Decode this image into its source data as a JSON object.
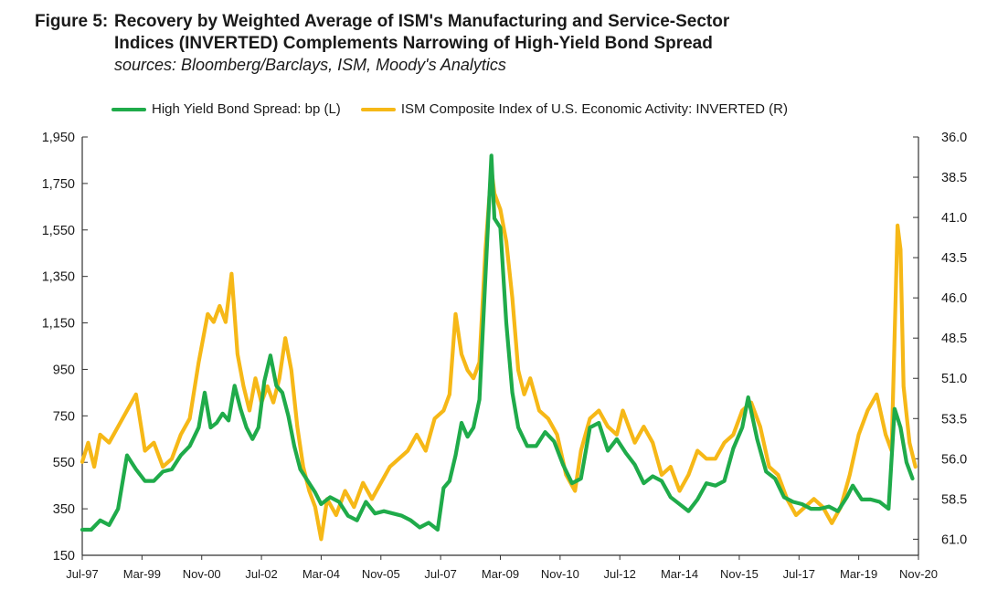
{
  "figure": {
    "label": "Figure 5:",
    "title_line1": "Recovery by Weighted Average of ISM's Manufacturing and Service-Sector",
    "title_line2": "Indices (INVERTED) Complements Narrowing of High-Yield Bond Spread",
    "sources": "sources: Bloomberg/Barclays, ISM, Moody's Analytics"
  },
  "colors": {
    "green": "#1fab4a",
    "gold": "#f6b817",
    "axis": "#333333"
  },
  "chart_data": {
    "type": "line",
    "title": "Recovery by Weighted Average of ISM's Manufacturing and Service-Sector Indices (INVERTED) Complements Narrowing of High-Yield Bond Spread",
    "left_axis": {
      "label": "High Yield Bond Spread: bp (L)",
      "min": 150,
      "max": 1950,
      "ticks": [
        "1,950",
        "1,750",
        "1,550",
        "1,350",
        "1,150",
        "950",
        "750",
        "550",
        "350",
        "150"
      ]
    },
    "right_axis": {
      "label": "ISM Composite Index of U.S. Economic Activity: INVERTED (R)",
      "min": 36.0,
      "max": 62.0,
      "inverted": true,
      "ticks": [
        "36.0",
        "38.5",
        "41.0",
        "43.5",
        "46.0",
        "48.5",
        "51.0",
        "53.5",
        "56.0",
        "58.5",
        "61.0"
      ]
    },
    "x_axis": {
      "start": "Jul-97",
      "end": "Nov-20",
      "tick_labels": [
        "Jul-97",
        "Mar-99",
        "Nov-00",
        "Jul-02",
        "Mar-04",
        "Nov-05",
        "Jul-07",
        "Mar-09",
        "Nov-10",
        "Jul-12",
        "Mar-14",
        "Nov-15",
        "Jul-17",
        "Mar-19",
        "Nov-20"
      ]
    },
    "legend_position": "top",
    "grid": false,
    "series": [
      {
        "name": "High Yield Bond Spread: bp (L)",
        "axis": "left",
        "color": "#1fab4a",
        "points": [
          [
            "Jul-97",
            260
          ],
          [
            "Oct-97",
            260
          ],
          [
            "Jan-98",
            300
          ],
          [
            "Apr-98",
            280
          ],
          [
            "Jul-98",
            350
          ],
          [
            "Oct-98",
            580
          ],
          [
            "Jan-99",
            520
          ],
          [
            "Apr-99",
            470
          ],
          [
            "Jul-99",
            470
          ],
          [
            "Oct-99",
            510
          ],
          [
            "Jan-00",
            520
          ],
          [
            "Apr-00",
            580
          ],
          [
            "Jul-00",
            620
          ],
          [
            "Oct-00",
            700
          ],
          [
            "Dec-00",
            850
          ],
          [
            "Feb-01",
            700
          ],
          [
            "Apr-01",
            720
          ],
          [
            "Jun-01",
            760
          ],
          [
            "Aug-01",
            730
          ],
          [
            "Oct-01",
            880
          ],
          [
            "Dec-01",
            780
          ],
          [
            "Feb-02",
            700
          ],
          [
            "Apr-02",
            650
          ],
          [
            "Jun-02",
            700
          ],
          [
            "Aug-02",
            900
          ],
          [
            "Oct-02",
            1010
          ],
          [
            "Dec-02",
            880
          ],
          [
            "Feb-03",
            850
          ],
          [
            "Apr-03",
            750
          ],
          [
            "Jun-03",
            620
          ],
          [
            "Aug-03",
            520
          ],
          [
            "Oct-03",
            480
          ],
          [
            "Jan-04",
            420
          ],
          [
            "Mar-04",
            370
          ],
          [
            "Jun-04",
            400
          ],
          [
            "Sep-04",
            380
          ],
          [
            "Dec-04",
            320
          ],
          [
            "Mar-05",
            300
          ],
          [
            "Jun-05",
            380
          ],
          [
            "Sep-05",
            330
          ],
          [
            "Dec-05",
            340
          ],
          [
            "Mar-06",
            330
          ],
          [
            "Jun-06",
            320
          ],
          [
            "Sep-06",
            300
          ],
          [
            "Dec-06",
            270
          ],
          [
            "Mar-07",
            290
          ],
          [
            "Jun-07",
            260
          ],
          [
            "Aug-07",
            440
          ],
          [
            "Oct-07",
            470
          ],
          [
            "Dec-07",
            580
          ],
          [
            "Feb-08",
            720
          ],
          [
            "Apr-08",
            660
          ],
          [
            "Jun-08",
            700
          ],
          [
            "Aug-08",
            820
          ],
          [
            "Oct-08",
            1350
          ],
          [
            "Dec-08",
            1870
          ],
          [
            "Jan-09",
            1600
          ],
          [
            "Mar-09",
            1560
          ],
          [
            "May-09",
            1150
          ],
          [
            "Jul-09",
            850
          ],
          [
            "Sep-09",
            700
          ],
          [
            "Dec-09",
            620
          ],
          [
            "Mar-10",
            620
          ],
          [
            "Jun-10",
            680
          ],
          [
            "Sep-10",
            640
          ],
          [
            "Dec-10",
            540
          ],
          [
            "Mar-11",
            460
          ],
          [
            "Jun-11",
            480
          ],
          [
            "Sep-11",
            700
          ],
          [
            "Dec-11",
            720
          ],
          [
            "Mar-12",
            600
          ],
          [
            "Jun-12",
            650
          ],
          [
            "Sep-12",
            590
          ],
          [
            "Dec-12",
            540
          ],
          [
            "Mar-13",
            460
          ],
          [
            "Jun-13",
            490
          ],
          [
            "Sep-13",
            470
          ],
          [
            "Dec-13",
            400
          ],
          [
            "Mar-14",
            370
          ],
          [
            "Jun-14",
            340
          ],
          [
            "Sep-14",
            390
          ],
          [
            "Dec-14",
            460
          ],
          [
            "Mar-15",
            450
          ],
          [
            "Jun-15",
            470
          ],
          [
            "Sep-15",
            610
          ],
          [
            "Dec-15",
            700
          ],
          [
            "Feb-16",
            830
          ],
          [
            "May-16",
            650
          ],
          [
            "Aug-16",
            510
          ],
          [
            "Nov-16",
            480
          ],
          [
            "Feb-17",
            400
          ],
          [
            "May-17",
            380
          ],
          [
            "Aug-17",
            370
          ],
          [
            "Nov-17",
            350
          ],
          [
            "Feb-18",
            350
          ],
          [
            "May-18",
            360
          ],
          [
            "Aug-18",
            340
          ],
          [
            "Nov-18",
            400
          ],
          [
            "Jan-19",
            450
          ],
          [
            "Apr-19",
            390
          ],
          [
            "Jul-19",
            390
          ],
          [
            "Oct-19",
            380
          ],
          [
            "Jan-20",
            350
          ],
          [
            "Mar-20",
            780
          ],
          [
            "May-20",
            700
          ],
          [
            "Jul-20",
            550
          ],
          [
            "Sep-20",
            480
          ]
        ]
      },
      {
        "name": "ISM Composite Index of U.S. Economic Activity: INVERTED (R)",
        "axis": "right",
        "color": "#f6b817",
        "points": [
          [
            "Jul-97",
            56.2
          ],
          [
            "Sep-97",
            55.0
          ],
          [
            "Nov-97",
            56.5
          ],
          [
            "Jan-98",
            54.5
          ],
          [
            "Apr-98",
            55.0
          ],
          [
            "Jul-98",
            54.0
          ],
          [
            "Oct-98",
            53.0
          ],
          [
            "Jan-99",
            52.0
          ],
          [
            "Apr-99",
            55.5
          ],
          [
            "Jul-99",
            55.0
          ],
          [
            "Oct-99",
            56.5
          ],
          [
            "Jan-00",
            56.0
          ],
          [
            "Apr-00",
            54.5
          ],
          [
            "Jul-00",
            53.5
          ],
          [
            "Oct-00",
            50.0
          ],
          [
            "Jan-01",
            47.0
          ],
          [
            "Mar-01",
            47.5
          ],
          [
            "May-01",
            46.5
          ],
          [
            "Jul-01",
            47.5
          ],
          [
            "Sep-01",
            44.5
          ],
          [
            "Nov-01",
            49.5
          ],
          [
            "Jan-02",
            51.5
          ],
          [
            "Mar-02",
            53.0
          ],
          [
            "May-02",
            51.0
          ],
          [
            "Jul-02",
            52.5
          ],
          [
            "Sep-02",
            51.5
          ],
          [
            "Nov-02",
            52.5
          ],
          [
            "Jan-03",
            51.0
          ],
          [
            "Mar-03",
            48.5
          ],
          [
            "May-03",
            50.5
          ],
          [
            "Jul-03",
            54.0
          ],
          [
            "Sep-03",
            56.5
          ],
          [
            "Nov-03",
            58.0
          ],
          [
            "Jan-04",
            59.0
          ],
          [
            "Mar-04",
            61.0
          ],
          [
            "May-04",
            58.5
          ],
          [
            "Aug-04",
            59.5
          ],
          [
            "Nov-04",
            58.0
          ],
          [
            "Feb-05",
            59.0
          ],
          [
            "May-05",
            57.5
          ],
          [
            "Aug-05",
            58.5
          ],
          [
            "Nov-05",
            57.5
          ],
          [
            "Feb-06",
            56.5
          ],
          [
            "May-06",
            56.0
          ],
          [
            "Aug-06",
            55.5
          ],
          [
            "Nov-06",
            54.5
          ],
          [
            "Feb-07",
            55.5
          ],
          [
            "May-07",
            53.5
          ],
          [
            "Aug-07",
            53.0
          ],
          [
            "Oct-07",
            52.0
          ],
          [
            "Dec-07",
            47.0
          ],
          [
            "Feb-08",
            49.5
          ],
          [
            "Apr-08",
            50.5
          ],
          [
            "Jun-08",
            51.0
          ],
          [
            "Aug-08",
            50.0
          ],
          [
            "Oct-08",
            43.0
          ],
          [
            "Dec-08",
            38.0
          ],
          [
            "Jan-09",
            39.5
          ],
          [
            "Mar-09",
            40.5
          ],
          [
            "May-09",
            42.5
          ],
          [
            "Jul-09",
            46.0
          ],
          [
            "Sep-09",
            50.5
          ],
          [
            "Nov-09",
            52.0
          ],
          [
            "Jan-10",
            51.0
          ],
          [
            "Apr-10",
            53.0
          ],
          [
            "Jul-10",
            53.5
          ],
          [
            "Oct-10",
            54.5
          ],
          [
            "Jan-11",
            57.0
          ],
          [
            "Apr-11",
            58.0
          ],
          [
            "Jun-11",
            55.5
          ],
          [
            "Sep-11",
            53.5
          ],
          [
            "Dec-11",
            53.0
          ],
          [
            "Mar-12",
            54.0
          ],
          [
            "Jun-12",
            54.5
          ],
          [
            "Aug-12",
            53.0
          ],
          [
            "Oct-12",
            54.0
          ],
          [
            "Dec-12",
            55.0
          ],
          [
            "Mar-13",
            54.0
          ],
          [
            "Jun-13",
            55.0
          ],
          [
            "Sep-13",
            57.0
          ],
          [
            "Dec-13",
            56.5
          ],
          [
            "Mar-14",
            58.0
          ],
          [
            "Jun-14",
            57.0
          ],
          [
            "Sep-14",
            55.5
          ],
          [
            "Dec-14",
            56.0
          ],
          [
            "Mar-15",
            56.0
          ],
          [
            "Jun-15",
            55.0
          ],
          [
            "Sep-15",
            54.5
          ],
          [
            "Dec-15",
            53.0
          ],
          [
            "Mar-16",
            52.5
          ],
          [
            "Jun-16",
            54.0
          ],
          [
            "Sep-16",
            56.5
          ],
          [
            "Dec-16",
            57.0
          ],
          [
            "Mar-17",
            58.5
          ],
          [
            "Jun-17",
            59.5
          ],
          [
            "Sep-17",
            59.0
          ],
          [
            "Dec-17",
            58.5
          ],
          [
            "Mar-18",
            59.0
          ],
          [
            "Jun-18",
            60.0
          ],
          [
            "Sep-18",
            59.0
          ],
          [
            "Dec-18",
            57.0
          ],
          [
            "Mar-19",
            54.5
          ],
          [
            "Jun-19",
            53.0
          ],
          [
            "Sep-19",
            52.0
          ],
          [
            "Dec-19",
            54.5
          ],
          [
            "Feb-20",
            55.5
          ],
          [
            "Apr-20",
            41.5
          ],
          [
            "May-20",
            43.0
          ],
          [
            "Jun-20",
            51.5
          ],
          [
            "Aug-20",
            55.0
          ],
          [
            "Oct-20",
            56.5
          ]
        ]
      }
    ]
  }
}
